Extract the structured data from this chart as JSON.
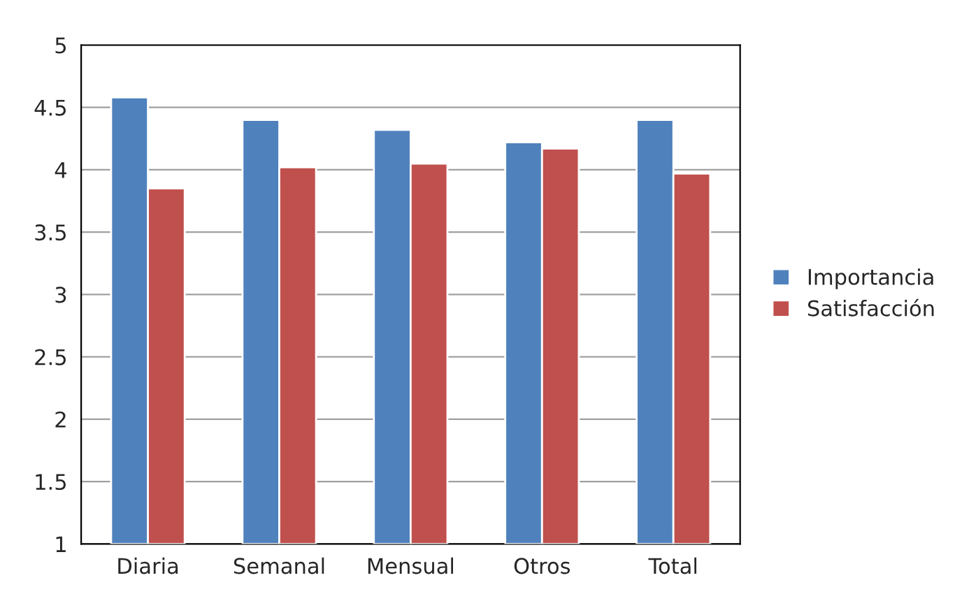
{
  "chart_data": {
    "type": "bar",
    "categories": [
      "Diaria",
      "Semanal",
      "Mensual",
      "Otros",
      "Total"
    ],
    "series": [
      {
        "name": "Importancia",
        "color": "#4f81bd",
        "values": [
          4.58,
          4.4,
          4.32,
          4.22,
          4.4
        ]
      },
      {
        "name": "Satisfacción",
        "color": "#c0504d",
        "values": [
          3.85,
          4.02,
          4.05,
          4.17,
          3.97
        ]
      }
    ],
    "ylim": [
      1,
      5
    ],
    "yticks": [
      1,
      1.5,
      2,
      2.5,
      3,
      3.5,
      4,
      4.5,
      5
    ],
    "grid": "y",
    "legend": "right"
  }
}
